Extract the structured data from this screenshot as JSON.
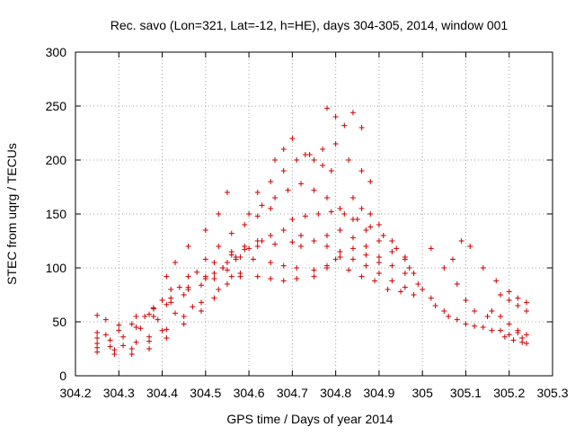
{
  "chart_data": {
    "type": "scatter",
    "title": "Rec. savo (Lon=321, Lat=-12, h=HE), days 304-305, 2014, window 001",
    "xlabel": "GPS time / Days of year 2014",
    "ylabel": "STEC from uqrg / TECUs",
    "xlim": [
      304.2,
      305.3
    ],
    "ylim": [
      0,
      300
    ],
    "xticks": [
      "304.2",
      "304.3",
      "304.4",
      "304.5",
      "304.6",
      "304.7",
      "304.8",
      "304.9",
      "305",
      "305.1",
      "305.2",
      "305.3"
    ],
    "yticks": [
      "0",
      "50",
      "100",
      "150",
      "200",
      "250",
      "300"
    ],
    "grid": true,
    "marker": "+",
    "color": "#cc0000",
    "series": [
      {
        "tracks": [
          {
            "x": [
              304.25,
              304.29,
              304.33,
              304.37,
              304.41,
              304.45,
              304.49,
              304.52,
              304.55,
              304.58
            ],
            "y": [
              22,
              20,
              20,
              25,
              35,
              48,
              60,
              72,
              85,
              92
            ]
          },
          {
            "x": [
              304.25,
              304.29,
              304.33,
              304.37,
              304.41,
              304.45,
              304.49,
              304.53,
              304.56
            ],
            "y": [
              26,
              24,
              25,
              32,
              43,
              55,
              68,
              80,
              92
            ]
          },
          {
            "x": [
              304.25,
              304.28,
              304.31,
              304.34,
              304.37,
              304.4
            ],
            "y": [
              30,
              27,
              28,
              31,
              36,
              42
            ]
          },
          {
            "x": [
              304.25,
              304.28,
              304.31,
              304.35,
              304.39,
              304.43,
              304.47
            ],
            "y": [
              35,
              33,
              36,
              44,
              52,
              58,
              64
            ]
          },
          {
            "x": [
              304.25,
              304.27,
              304.3,
              304.33,
              304.37,
              304.41,
              304.45,
              304.49,
              304.52
            ],
            "y": [
              40,
              38,
              42,
              48,
              57,
              66,
              75,
              84,
              90
            ]
          },
          {
            "x": [
              304.25,
              304.27,
              304.3,
              304.34,
              304.38,
              304.42,
              304.46,
              304.5,
              304.54,
              304.57
            ],
            "y": [
              56,
              52,
              47,
              55,
              63,
              72,
              82,
              92,
              100,
              108
            ]
          },
          {
            "x": [
              304.34,
              304.38,
              304.42,
              304.46,
              304.5,
              304.54,
              304.57,
              304.6,
              304.63
            ],
            "y": [
              45,
              55,
              68,
              80,
              90,
              100,
              110,
              118,
              125
            ]
          },
          {
            "x": [
              304.36,
              304.4,
              304.44,
              304.48,
              304.52,
              304.56,
              304.59,
              304.62,
              304.66,
              304.7
            ],
            "y": [
              55,
              70,
              82,
              96,
              105,
              112,
              117,
              120,
              122,
              124
            ]
          },
          {
            "x": [
              304.38,
              304.42,
              304.46,
              304.5,
              304.53,
              304.56,
              304.59,
              304.62,
              304.65
            ],
            "y": [
              62,
              80,
              92,
              108,
              120,
              132,
              140,
              148,
              155
            ]
          },
          {
            "x": [
              304.41,
              304.43,
              304.46,
              304.5,
              304.53,
              304.55
            ],
            "y": [
              92,
              105,
              120,
              135,
              150,
              170
            ]
          },
          {
            "x": [
              304.52,
              304.55,
              304.58,
              304.62,
              304.65,
              304.68,
              304.71,
              304.75,
              304.78,
              304.8,
              304.83,
              304.86,
              304.89,
              304.92,
              304.95
            ],
            "y": [
              95,
              98,
              95,
              92,
              90,
              88,
              90,
              92,
              100,
              108,
              98,
              92,
              88,
              80,
              78
            ]
          },
          {
            "x": [
              304.55,
              304.58,
              304.61,
              304.65,
              304.68,
              304.71,
              304.75,
              304.78,
              304.81,
              304.84,
              304.87,
              304.9
            ],
            "y": [
              105,
              110,
              108,
              105,
              102,
              100,
              98,
              102,
              110,
              118,
              112,
              105
            ]
          },
          {
            "x": [
              304.56,
              304.59,
              304.62,
              304.65,
              304.68,
              304.72,
              304.75,
              304.78,
              304.81,
              304.84,
              304.87,
              304.9,
              304.93,
              304.96,
              304.98
            ],
            "y": [
              115,
              120,
              125,
              130,
              135,
              130,
              125,
              120,
              115,
              108,
              102,
              95,
              88,
              82,
              75
            ]
          },
          {
            "x": [
              304.6,
              304.63,
              304.66,
              304.69,
              304.72,
              304.75,
              304.78,
              304.81,
              304.84,
              304.87,
              304.9,
              304.93,
              304.96
            ],
            "y": [
              150,
              158,
              165,
              172,
              178,
              172,
              165,
              155,
              145,
              135,
              125,
              115,
              108
            ]
          },
          {
            "x": [
              304.62,
              304.65,
              304.68,
              304.71,
              304.74,
              304.77,
              304.8,
              304.83,
              304.86,
              304.88
            ],
            "y": [
              170,
              180,
              190,
              200,
              205,
              210,
              215,
              200,
              190,
              180
            ]
          },
          {
            "x": [
              304.66,
              304.68,
              304.7,
              304.73,
              304.75,
              304.77,
              304.79
            ],
            "y": [
              200,
              210,
              220,
              205,
              200,
              195,
              190
            ]
          },
          {
            "x": [
              304.78,
              304.8,
              304.82,
              304.84,
              304.86
            ],
            "y": [
              248,
              240,
              232,
              244,
              230
            ]
          },
          {
            "x": [
              304.7,
              304.73,
              304.76,
              304.79,
              304.82,
              304.85,
              304.88,
              304.91,
              304.94,
              304.97,
              305.0,
              305.03,
              305.06,
              305.1,
              305.14,
              305.18,
              305.22
            ],
            "y": [
              145,
              148,
              150,
              152,
              150,
              145,
              138,
              130,
              118,
              100,
              80,
              65,
              55,
              48,
              45,
              42,
              40
            ]
          },
          {
            "x": [
              304.72,
              304.75,
              304.78,
              304.81,
              304.84,
              304.87,
              304.9,
              304.93,
              304.96,
              304.99,
              305.02,
              305.05,
              305.08,
              305.12,
              305.16,
              305.2,
              305.23
            ],
            "y": [
              120,
              125,
              130,
              135,
              128,
              120,
              110,
              102,
              95,
              85,
              72,
              60,
              52,
              46,
              42,
              38,
              35
            ]
          },
          {
            "x": [
              304.84,
              304.86,
              304.88,
              304.9,
              304.93,
              304.96,
              304.98
            ],
            "y": [
              165,
              155,
              150,
              140,
              125,
              110,
              95
            ]
          },
          {
            "x": [
              305.02,
              305.05,
              305.08,
              305.1,
              305.12,
              305.15
            ],
            "y": [
              118,
              100,
              85,
              70,
              60,
              55
            ]
          },
          {
            "x": [
              305.07,
              305.09,
              305.11,
              305.14,
              305.17,
              305.2,
              305.22,
              305.24
            ],
            "y": [
              108,
              125,
              120,
              100,
              88,
              78,
              72,
              68
            ]
          },
          {
            "x": [
              305.16,
              305.18,
              305.2,
              305.22,
              305.24
            ],
            "y": [
              60,
              55,
              48,
              42,
              38
            ]
          },
          {
            "x": [
              305.18,
              305.2,
              305.22,
              305.24
            ],
            "y": [
              75,
              70,
              65,
              60
            ]
          },
          {
            "x": [
              305.19,
              305.21,
              305.23,
              305.24
            ],
            "y": [
              36,
              33,
              31,
              30
            ]
          }
        ]
      }
    ]
  }
}
